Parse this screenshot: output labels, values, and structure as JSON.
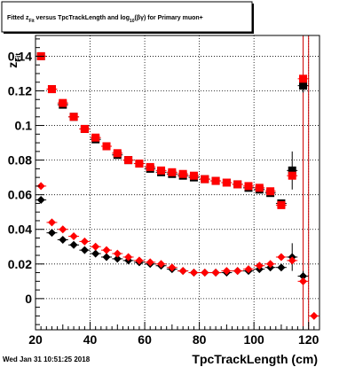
{
  "title": "Fitted  z_{Fit}  versus  TpcTrackLength  and  log_{10}(βγ)  for  Primary muon+",
  "title_parts": {
    "pre": "Fitted  z",
    "sub1": "Fit",
    "mid": "  versus  TpcTrackLength  and  log",
    "sub2": "10",
    "post": "(βγ)  for  Primary muon+"
  },
  "timestamp": "Wed Jan 31 10:51:25 2018",
  "chart_data": {
    "type": "scatter",
    "title": "Fitted z_Fit versus TpcTrackLength and log10(βγ) for Primary muon+",
    "xlabel": "TpcTrackLength (cm)",
    "ylabel": "z",
    "ylabel_sub": "Fit",
    "xlim": [
      20,
      124
    ],
    "ylim": [
      -0.018,
      0.152
    ],
    "xticks": [
      20,
      40,
      60,
      80,
      100,
      120
    ],
    "yticks": [
      0,
      0.02,
      0.04,
      0.06,
      0.08,
      0.1,
      0.12,
      0.14
    ],
    "ytick_labels": [
      "0",
      "0.02",
      "0.04",
      "0.06",
      "0.08",
      "0.1",
      "0.12",
      "0.14"
    ],
    "grid": true,
    "vertical_lines": [
      118,
      120
    ],
    "series": [
      {
        "marker": "square",
        "color": "#000000",
        "x": [
          22,
          26,
          30,
          34,
          38,
          42,
          46,
          50,
          54,
          58,
          62,
          66,
          70,
          74,
          78,
          82,
          86,
          90,
          94,
          98,
          102,
          106,
          110,
          114,
          118
        ],
        "y": [
          0.14,
          0.121,
          0.112,
          0.105,
          0.098,
          0.092,
          0.088,
          0.083,
          0.08,
          0.078,
          0.075,
          0.073,
          0.072,
          0.071,
          0.07,
          0.069,
          0.068,
          0.067,
          0.066,
          0.064,
          0.063,
          0.061,
          0.055,
          0.074,
          0.123
        ],
        "yerr": [
          0,
          0,
          0,
          0,
          0,
          0,
          0,
          0,
          0,
          0,
          0,
          0,
          0,
          0,
          0,
          0,
          0,
          0,
          0,
          0,
          0,
          0,
          0.002,
          0.011,
          0.004
        ]
      },
      {
        "marker": "square",
        "color": "#ff0000",
        "x": [
          22,
          26,
          30,
          34,
          38,
          42,
          46,
          50,
          54,
          58,
          62,
          66,
          70,
          74,
          78,
          82,
          86,
          90,
          94,
          98,
          102,
          106,
          110,
          114,
          118
        ],
        "y": [
          0.14,
          0.121,
          0.113,
          0.105,
          0.098,
          0.093,
          0.088,
          0.084,
          0.08,
          0.078,
          0.076,
          0.074,
          0.073,
          0.072,
          0.071,
          0.069,
          0.068,
          0.067,
          0.066,
          0.065,
          0.064,
          0.062,
          0.054,
          0.071,
          0.127
        ],
        "yerr": [
          0,
          0,
          0,
          0,
          0,
          0,
          0,
          0,
          0,
          0,
          0,
          0,
          0,
          0,
          0,
          0,
          0,
          0,
          0,
          0,
          0,
          0,
          0,
          0,
          0
        ]
      },
      {
        "marker": "diamond",
        "color": "#000000",
        "x": [
          22,
          26,
          30,
          34,
          38,
          42,
          46,
          50,
          54,
          58,
          62,
          66,
          70,
          74,
          78,
          82,
          86,
          90,
          94,
          98,
          102,
          106,
          110,
          114,
          118
        ],
        "y": [
          0.057,
          0.038,
          0.034,
          0.031,
          0.028,
          0.026,
          0.024,
          0.023,
          0.022,
          0.021,
          0.02,
          0.019,
          0.017,
          0.016,
          0.015,
          0.015,
          0.015,
          0.015,
          0.016,
          0.016,
          0.017,
          0.018,
          0.018,
          0.024,
          0.013
        ],
        "yerr": [
          0,
          0,
          0,
          0,
          0,
          0,
          0,
          0,
          0,
          0,
          0,
          0,
          0,
          0,
          0,
          0,
          0,
          0,
          0,
          0,
          0,
          0,
          0.002,
          0.008,
          0.003
        ]
      },
      {
        "marker": "diamond",
        "color": "#ff0000",
        "x": [
          22,
          26,
          30,
          34,
          38,
          42,
          46,
          50,
          54,
          58,
          62,
          66,
          70,
          74,
          78,
          82,
          86,
          90,
          94,
          98,
          102,
          106,
          110,
          114,
          118,
          122
        ],
        "y": [
          0.065,
          0.044,
          0.04,
          0.036,
          0.033,
          0.03,
          0.028,
          0.026,
          0.024,
          0.022,
          0.021,
          0.02,
          0.018,
          0.016,
          0.015,
          0.015,
          0.015,
          0.016,
          0.016,
          0.017,
          0.019,
          0.02,
          0.024,
          0.022,
          0.01,
          -0.01
        ],
        "yerr": [
          0,
          0,
          0,
          0,
          0,
          0,
          0,
          0,
          0,
          0,
          0,
          0,
          0,
          0,
          0,
          0,
          0,
          0,
          0,
          0,
          0,
          0,
          0,
          0,
          0,
          0
        ]
      }
    ]
  }
}
